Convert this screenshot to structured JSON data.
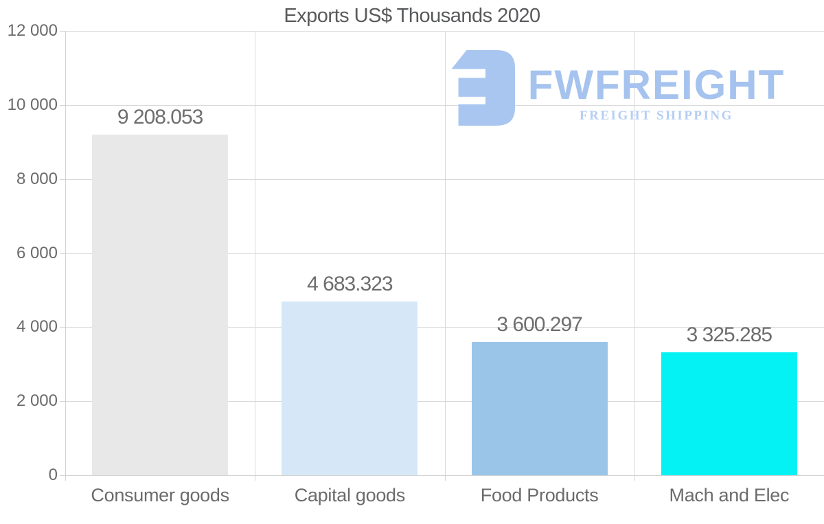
{
  "title": "Exports US$ Thousands 2020",
  "watermark": {
    "brand": "FWFREIGHT",
    "tagline": "FREIGHT SHIPPING",
    "icon_color": "#a9c6f0",
    "brand_color": "#a5c3ee",
    "tagline_color": "#b4cef3"
  },
  "chart_data": {
    "type": "bar",
    "title": "Exports US$ Thousands 2020",
    "categories": [
      "Consumer goods",
      "Capital goods",
      "Food Products",
      "Mach and Elec"
    ],
    "values": [
      9208.053,
      4683.323,
      3600.297,
      3325.285
    ],
    "value_labels": [
      "9 208.053",
      "4 683.323",
      "3 600.297",
      "3 325.285"
    ],
    "bar_colors": [
      "#e8e8e8",
      "#d6e7f8",
      "#9ac5e9",
      "#04f2f4"
    ],
    "ylim": [
      0,
      12000
    ],
    "ytick_interval": 2000,
    "ytick_labels": [
      "0",
      "2 000",
      "4 000",
      "6 000",
      "8 000",
      "10 000",
      "12 000"
    ],
    "grid": true,
    "legend": "none",
    "text_color": "#6b6b6b",
    "grid_color": "#d9d9d9"
  }
}
